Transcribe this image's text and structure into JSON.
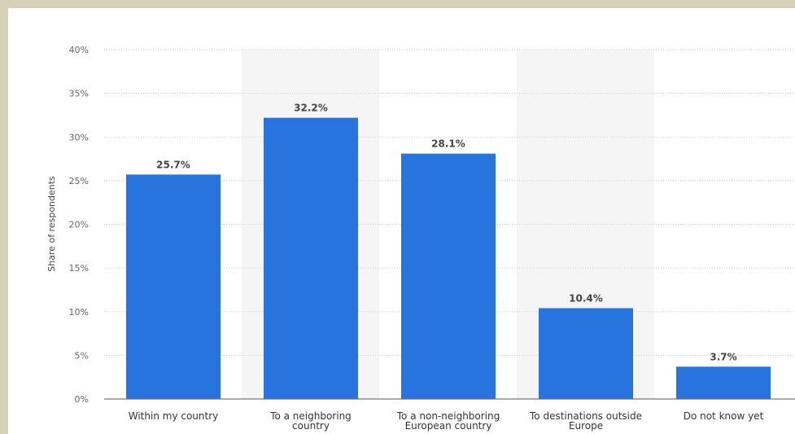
{
  "chart_data": {
    "type": "bar",
    "categories": [
      [
        "Within my country"
      ],
      [
        "To a neighboring",
        "country"
      ],
      [
        "To a non-neighboring",
        "European country"
      ],
      [
        "To destinations outside",
        "Europe"
      ],
      [
        "Do not know yet"
      ]
    ],
    "values": [
      25.7,
      32.2,
      28.1,
      10.4,
      3.7
    ],
    "value_labels": [
      "25.7%",
      "32.2%",
      "28.1%",
      "10.4%",
      "3.7%"
    ],
    "ylabel": "Share of respondents",
    "ylim": [
      0,
      40
    ],
    "yticks": [
      "0%",
      "5%",
      "10%",
      "15%",
      "20%",
      "25%",
      "30%",
      "35%",
      "40%"
    ],
    "grid": true,
    "bar_color": "#2874de",
    "band_color": "#f5f5f5"
  }
}
